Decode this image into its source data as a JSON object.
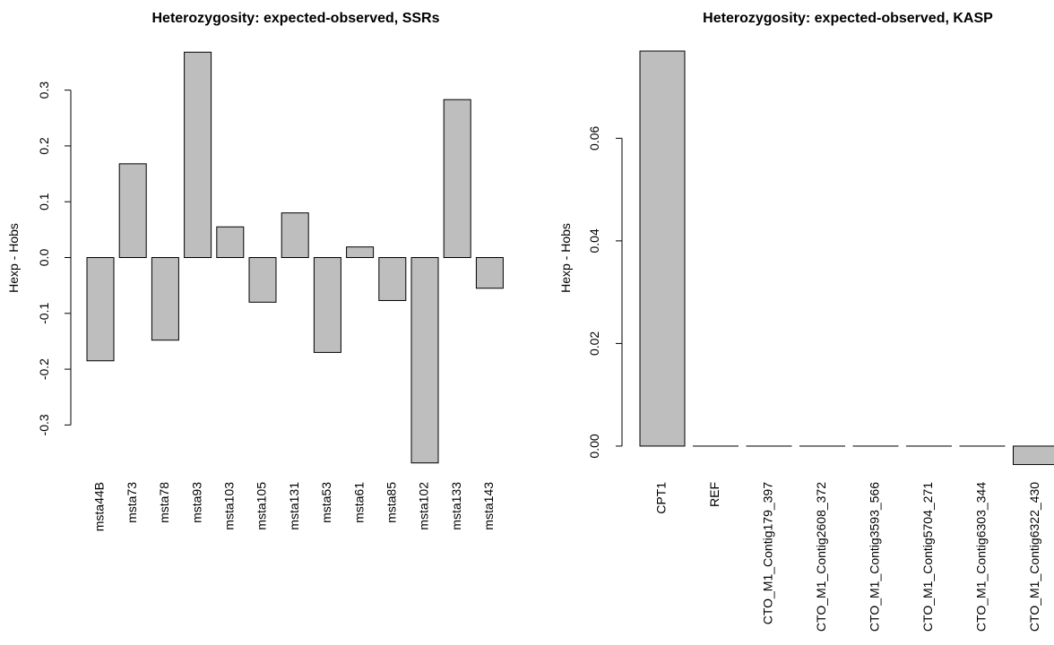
{
  "chart_data": [
    {
      "type": "bar",
      "title": "Heterozygosity: expected-observed, SSRs",
      "xlabel": "",
      "ylabel": "Hexp - Hobs",
      "ylim": [
        -0.37,
        0.37
      ],
      "yticks": [
        -0.3,
        -0.2,
        -0.1,
        0.0,
        0.1,
        0.2,
        0.3
      ],
      "ytick_labels": [
        "-0.3",
        "-0.2",
        "-0.1",
        "0.0",
        "0.1",
        "0.2",
        "0.3"
      ],
      "categories": [
        "msta44B",
        "msta73",
        "msta78",
        "msta93",
        "msta103",
        "msta105",
        "msta131",
        "msta53",
        "msta61",
        "msta85",
        "msta102",
        "msta133",
        "msta143"
      ],
      "values": [
        -0.185,
        0.168,
        -0.148,
        0.368,
        0.055,
        -0.08,
        0.08,
        -0.17,
        0.019,
        -0.077,
        -0.368,
        0.283,
        -0.055
      ],
      "bar_color": "#bebebe"
    },
    {
      "type": "bar",
      "title": "Heterozygosity: expected-observed, KASP",
      "xlabel": "",
      "ylabel": "Hexp - Hobs",
      "ylim": [
        -0.0035,
        0.077
      ],
      "yticks": [
        0.0,
        0.02,
        0.04,
        0.06
      ],
      "ytick_labels": [
        "0.00",
        "0.02",
        "0.04",
        "0.06"
      ],
      "categories": [
        "CPT1",
        "REF",
        "CTO_M1_Contig179_397",
        "CTO_M1_Contig2608_372",
        "CTO_M1_Contig3593_566",
        "CTO_M1_Contig5704_271",
        "CTO_M1_Contig6303_344",
        "CTO_M1_Contig6322_430"
      ],
      "values": [
        0.077,
        0.0,
        0.0,
        0.0,
        0.0,
        0.0,
        0.0,
        -0.0036
      ],
      "bar_color": "#bebebe"
    }
  ]
}
